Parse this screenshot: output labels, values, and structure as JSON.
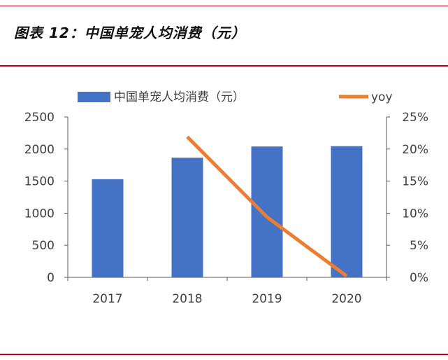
{
  "title": "图表 12：中国单宠人均消费（元）",
  "colors": {
    "bar": "#4472c4",
    "line": "#ed7d31",
    "accent": "#c00020"
  },
  "chart_data": {
    "type": "bar",
    "categories": [
      "2017",
      "2018",
      "2019",
      "2020"
    ],
    "series": [
      {
        "name": "中国单宠人均消费（元）",
        "type": "bar",
        "axis": "left",
        "values": [
          1530,
          1865,
          2040,
          2045
        ]
      },
      {
        "name": "yoy",
        "type": "line",
        "axis": "right",
        "values": [
          null,
          0.219,
          0.094,
          0.002
        ]
      }
    ],
    "ylim_left": [
      0,
      2500
    ],
    "yticks_left": [
      "0",
      "500",
      "1000",
      "1500",
      "2000",
      "2500"
    ],
    "ylim_right": [
      0,
      0.25
    ],
    "yticks_right": [
      "0%",
      "5%",
      "10%",
      "15%",
      "20%",
      "25%"
    ],
    "legend": [
      "中国单宠人均消费（元）",
      "yoy"
    ],
    "legend_position": "top",
    "grid": false
  }
}
